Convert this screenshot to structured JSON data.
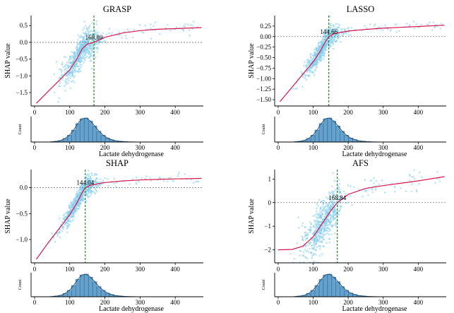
{
  "chart_data": [
    {
      "type": "scatter",
      "title": "GRASP",
      "xlabel": "Lactate dehydrogenase",
      "ylabel": "SHAP value",
      "hist_ylabel": "Count",
      "xlim": [
        -10,
        480
      ],
      "ylim": [
        -1.9,
        0.8
      ],
      "xticks": [
        0,
        100,
        200,
        300,
        400
      ],
      "yticks": [
        0.5,
        0.0,
        -0.5,
        -1.0,
        -1.5
      ],
      "ytick_labels": [
        "0.5",
        "0.0",
        "−0.5",
        "−1.0",
        "−1.5"
      ],
      "threshold": 168.8,
      "threshold_label": "168.80",
      "fit_curve": [
        [
          5,
          -1.82
        ],
        [
          40,
          -1.45
        ],
        [
          80,
          -1.03
        ],
        [
          100,
          -0.82
        ],
        [
          120,
          -0.5
        ],
        [
          135,
          -0.2
        ],
        [
          150,
          -0.05
        ],
        [
          168.8,
          0.0
        ],
        [
          200,
          0.15
        ],
        [
          250,
          0.28
        ],
        [
          300,
          0.35
        ],
        [
          350,
          0.39
        ],
        [
          400,
          0.41
        ],
        [
          475,
          0.44
        ]
      ],
      "cloud": {
        "x_mean": 132,
        "x_sd": 28,
        "y_spread": 0.22
      },
      "histogram": [
        1,
        2,
        4,
        9,
        17,
        30,
        46,
        58,
        60,
        52,
        40,
        27,
        17,
        10,
        6,
        3,
        2,
        1,
        0.5,
        0.3,
        0.2,
        0.1,
        0.1,
        0.1
      ]
    },
    {
      "type": "scatter",
      "title": "LASSO",
      "xlabel": "Lactate dehydrogenase",
      "ylabel": "SHAP value",
      "hist_ylabel": "Count",
      "xlim": [
        -10,
        480
      ],
      "ylim": [
        -1.65,
        0.5
      ],
      "xticks": [
        0,
        100,
        200,
        300,
        400
      ],
      "yticks": [
        0.25,
        0.0,
        -0.25,
        -0.5,
        -0.75,
        -1.0,
        -1.25,
        -1.5
      ],
      "ytick_labels": [
        "0.25",
        "0.00",
        "−0.25",
        "−0.50",
        "−0.75",
        "−1.00",
        "−1.25",
        "−1.50"
      ],
      "threshold": 144.66,
      "threshold_label": "144.66",
      "fit_curve": [
        [
          5,
          -1.55
        ],
        [
          40,
          -1.2
        ],
        [
          80,
          -0.8
        ],
        [
          100,
          -0.6
        ],
        [
          120,
          -0.35
        ],
        [
          135,
          -0.12
        ],
        [
          144.66,
          0.0
        ],
        [
          160,
          0.07
        ],
        [
          200,
          0.13
        ],
        [
          250,
          0.17
        ],
        [
          300,
          0.2
        ],
        [
          350,
          0.22
        ],
        [
          400,
          0.24
        ],
        [
          475,
          0.27
        ]
      ],
      "cloud": {
        "x_mean": 128,
        "x_sd": 27,
        "y_spread": 0.12
      },
      "histogram": [
        1,
        2,
        4,
        9,
        17,
        30,
        46,
        58,
        60,
        52,
        40,
        27,
        17,
        10,
        6,
        3,
        2,
        1,
        0.5,
        0.3,
        0.2,
        0.1,
        0.1,
        0.1
      ]
    },
    {
      "type": "scatter",
      "title": "SHAP",
      "xlabel": "Lactate dehydrogenase",
      "ylabel": "SHAP value",
      "hist_ylabel": "Count",
      "xlim": [
        -10,
        480
      ],
      "ylim": [
        -1.45,
        0.35
      ],
      "xticks": [
        0,
        100,
        200,
        300,
        400
      ],
      "yticks": [
        0.0,
        -0.5,
        -1.0
      ],
      "ytick_labels": [
        "0.0",
        "−0.5",
        "−1.0"
      ],
      "threshold": 144.04,
      "threshold_label": "144.04",
      "fit_curve": [
        [
          5,
          -1.38
        ],
        [
          40,
          -1.05
        ],
        [
          80,
          -0.7
        ],
        [
          100,
          -0.52
        ],
        [
          120,
          -0.3
        ],
        [
          135,
          -0.1
        ],
        [
          144.04,
          0.0
        ],
        [
          160,
          0.05
        ],
        [
          200,
          0.1
        ],
        [
          250,
          0.13
        ],
        [
          300,
          0.15
        ],
        [
          350,
          0.16
        ],
        [
          400,
          0.17
        ],
        [
          475,
          0.18
        ]
      ],
      "cloud": {
        "x_mean": 128,
        "x_sd": 27,
        "y_spread": 0.1
      },
      "histogram": [
        1,
        2,
        4,
        9,
        17,
        30,
        46,
        58,
        60,
        52,
        40,
        27,
        17,
        10,
        6,
        3,
        2,
        1,
        0.5,
        0.3,
        0.2,
        0.1,
        0.1,
        0.1
      ]
    },
    {
      "type": "scatter",
      "title": "AFS",
      "xlabel": "Lactate dehydrogenase",
      "ylabel": "SHAP value",
      "hist_ylabel": "Count",
      "xlim": [
        -10,
        480
      ],
      "ylim": [
        -2.55,
        1.4
      ],
      "xticks": [
        0,
        100,
        200,
        300,
        400
      ],
      "yticks": [
        1,
        0,
        -1,
        -2
      ],
      "ytick_labels": [
        "1",
        "0",
        "−1",
        "−2"
      ],
      "threshold": 168.84,
      "threshold_label": "168.84",
      "fit_curve": [
        [
          0,
          -2.0
        ],
        [
          40,
          -1.98
        ],
        [
          70,
          -1.85
        ],
        [
          100,
          -1.45
        ],
        [
          130,
          -0.8
        ],
        [
          150,
          -0.35
        ],
        [
          168.84,
          0.0
        ],
        [
          200,
          0.35
        ],
        [
          250,
          0.6
        ],
        [
          300,
          0.72
        ],
        [
          350,
          0.82
        ],
        [
          400,
          0.92
        ],
        [
          475,
          1.1
        ]
      ],
      "cloud": {
        "x_mean": 128,
        "x_sd": 27,
        "y_spread": 0.45
      },
      "histogram": [
        1,
        2,
        4,
        9,
        17,
        30,
        46,
        58,
        60,
        52,
        40,
        27,
        17,
        10,
        6,
        3,
        2,
        1,
        0.5,
        0.3,
        0.2,
        0.1,
        0.1,
        0.1
      ]
    }
  ]
}
